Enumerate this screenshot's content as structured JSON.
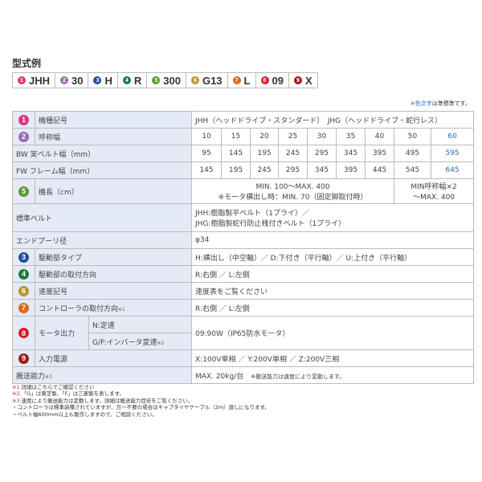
{
  "title": "型式例",
  "model": [
    {
      "n": "1",
      "code": "JHH",
      "color": "#e0327a"
    },
    {
      "n": "2",
      "code": "30",
      "color": "#9a6bb0"
    },
    {
      "n": "3",
      "code": "H",
      "color": "#1f4f9a"
    },
    {
      "n": "4",
      "code": "R",
      "color": "#1e7a3a"
    },
    {
      "n": "5",
      "code": "300",
      "color": "#5a9a2a"
    },
    {
      "n": "6",
      "code": "G13",
      "color": "#b8962a"
    },
    {
      "n": "7",
      "code": "L",
      "color": "#e06a1a"
    },
    {
      "n": "8",
      "code": "09",
      "color": "#d81e2a"
    },
    {
      "n": "9",
      "code": "X",
      "color": "#a01a1a"
    }
  ],
  "note_top": {
    "colored": "※色文字",
    "rest": "は準標準です。"
  },
  "table": {
    "r1": {
      "label": "機種記号",
      "value": "JHH（ヘッドドライブ・スタンダード）　JHG（ヘッドドライブ・蛇行レス）"
    },
    "r2": {
      "label": "呼称幅",
      "values": [
        "10",
        "15",
        "20",
        "25",
        "30",
        "35",
        "40",
        "50",
        "60"
      ]
    },
    "r3": {
      "label": "BW 実ベルト幅（mm）",
      "values": [
        "95",
        "145",
        "195",
        "245",
        "295",
        "345",
        "395",
        "495",
        "595"
      ]
    },
    "r4": {
      "label": "FW フレーム幅（mm）",
      "values": [
        "145",
        "195",
        "245",
        "295",
        "345",
        "395",
        "445",
        "545",
        "645"
      ]
    },
    "r5": {
      "label": "機長（cm）",
      "v1a": "MIN. 100～MAX. 400",
      "v1b": "※モータ横出し時：MIN. 70（固定脚取付時）",
      "v2a": "MIN呼称幅×2",
      "v2b": "～MAX. 400"
    },
    "r6": {
      "label": "標準ベルト",
      "va": "JHH:樹脂製平ベルト（1プライ）／",
      "vb": "JHG:樹脂製蛇行防止桟付きベルト（1プライ）"
    },
    "r7": {
      "label": "エンドプーリ径",
      "value": "φ34"
    },
    "r8": {
      "label": "駆動部タイプ",
      "value": "H:横出し（中空軸）／ D:下付き（平行軸）／ U:上付き（平行軸）"
    },
    "r9": {
      "label": "駆動部の取付方向",
      "value": "R:右側 ／ L:左側"
    },
    "r10": {
      "label": "速度記号",
      "value": "速度表をご覧ください"
    },
    "r11": {
      "label": "コントローラの取付方向",
      "mark": "※1",
      "value": "R:右側 ／ L:左側"
    },
    "r12": {
      "label": "モータ出力",
      "sub1": "N:定速",
      "sub2": "G/F:インバータ変速",
      "mark": "※2",
      "value": "09:90W（IP65防水モータ）"
    },
    "r13": {
      "label": "入力電源",
      "value": "X:100V単相 ／ Y:200V単相 ／ Z:200V三相"
    },
    "r14": {
      "label": "搬送能力",
      "mark": "※3",
      "value": "MAX. 20kg/台",
      "note": "※搬送能力は速度により変動します。"
    }
  },
  "footnotes": [
    {
      "mark": "※1.",
      "text": "詳細はこちらでご確認ください"
    },
    {
      "mark": "※2.",
      "text": "「G」は東芝製、「F」は三菱製を表します。"
    },
    {
      "mark": "※3.",
      "text": "速度により搬送能力は変動します。詳細は搬送能力目安をご覧ください。"
    },
    {
      "mark": "",
      "text": "・コントローラは標準装備されていますが、万一不要の場合はキャブタイヤケーブル（2m）渡しになります。"
    },
    {
      "mark": "",
      "text": "・ベルト幅600mm以上も製作しますので、ご相談ください。"
    }
  ]
}
